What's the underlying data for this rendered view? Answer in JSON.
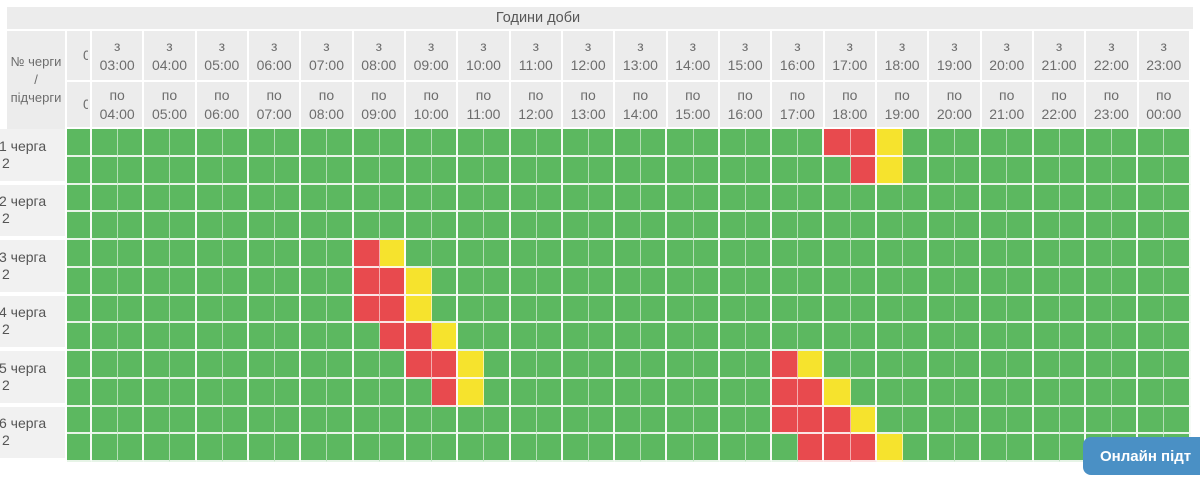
{
  "header": {
    "hours_title": "Години доби",
    "corner_lines": [
      "№ черги",
      "/",
      "підчерги"
    ],
    "from_prefix": "з",
    "to_prefix": "по",
    "clipped_column": {
      "from_fragment": "0",
      "to_fragment": "0"
    },
    "columns": [
      {
        "from": "03:00",
        "to": "04:00"
      },
      {
        "from": "04:00",
        "to": "05:00"
      },
      {
        "from": "05:00",
        "to": "06:00"
      },
      {
        "from": "06:00",
        "to": "07:00"
      },
      {
        "from": "07:00",
        "to": "08:00"
      },
      {
        "from": "08:00",
        "to": "09:00"
      },
      {
        "from": "09:00",
        "to": "10:00"
      },
      {
        "from": "10:00",
        "to": "11:00"
      },
      {
        "from": "11:00",
        "to": "12:00"
      },
      {
        "from": "12:00",
        "to": "13:00"
      },
      {
        "from": "13:00",
        "to": "14:00"
      },
      {
        "from": "14:00",
        "to": "15:00"
      },
      {
        "from": "15:00",
        "to": "16:00"
      },
      {
        "from": "16:00",
        "to": "17:00"
      },
      {
        "from": "17:00",
        "to": "18:00"
      },
      {
        "from": "18:00",
        "to": "19:00"
      },
      {
        "from": "19:00",
        "to": "20:00"
      },
      {
        "from": "20:00",
        "to": "21:00"
      },
      {
        "from": "21:00",
        "to": "22:00"
      },
      {
        "from": "22:00",
        "to": "23:00"
      },
      {
        "from": "23:00",
        "to": "00:00"
      }
    ]
  },
  "grid": {
    "half_hour_cells_per_row": 42,
    "start_time": "03:00",
    "cell_minutes": 30
  },
  "queues": [
    {
      "label": "1 черга",
      "sub_label": "2",
      "subrows": [
        {
          "red": [
            28,
            29
          ],
          "yellow": [
            30
          ]
        },
        {
          "red": [
            29
          ],
          "yellow": [
            30
          ]
        }
      ]
    },
    {
      "label": "2 черга",
      "sub_label": "2",
      "subrows": [
        {
          "red": [],
          "yellow": []
        },
        {
          "red": [],
          "yellow": []
        }
      ]
    },
    {
      "label": "3 черга",
      "sub_label": "2",
      "subrows": [
        {
          "red": [
            10
          ],
          "yellow": [
            11
          ]
        },
        {
          "red": [
            10,
            11
          ],
          "yellow": [
            12
          ]
        }
      ]
    },
    {
      "label": "4 черга",
      "sub_label": "2",
      "subrows": [
        {
          "red": [
            10,
            11
          ],
          "yellow": [
            12
          ]
        },
        {
          "red": [
            11,
            12
          ],
          "yellow": [
            13
          ]
        }
      ]
    },
    {
      "label": "5 черга",
      "sub_label": "2",
      "subrows": [
        {
          "red": [
            12,
            13,
            26
          ],
          "yellow": [
            14,
            27
          ]
        },
        {
          "red": [
            13,
            26,
            27
          ],
          "yellow": [
            14,
            28
          ]
        }
      ]
    },
    {
      "label": "6 черга",
      "sub_label": "2",
      "subrows": [
        {
          "red": [
            26,
            27,
            28
          ],
          "yellow": [
            29
          ]
        },
        {
          "red": [
            27,
            28,
            29
          ],
          "yellow": [
            30
          ]
        }
      ]
    }
  ],
  "colors": {
    "power_on": "#5cb860",
    "outage": "#e84a4e",
    "possible_outage": "#f6e32d",
    "header_bg": "#ececec",
    "label_bg": "#f1f1f1",
    "header_text": "#6d6d6d",
    "button_bg": "#4a90c5"
  },
  "support_button": {
    "label": "Онлайн підт"
  }
}
